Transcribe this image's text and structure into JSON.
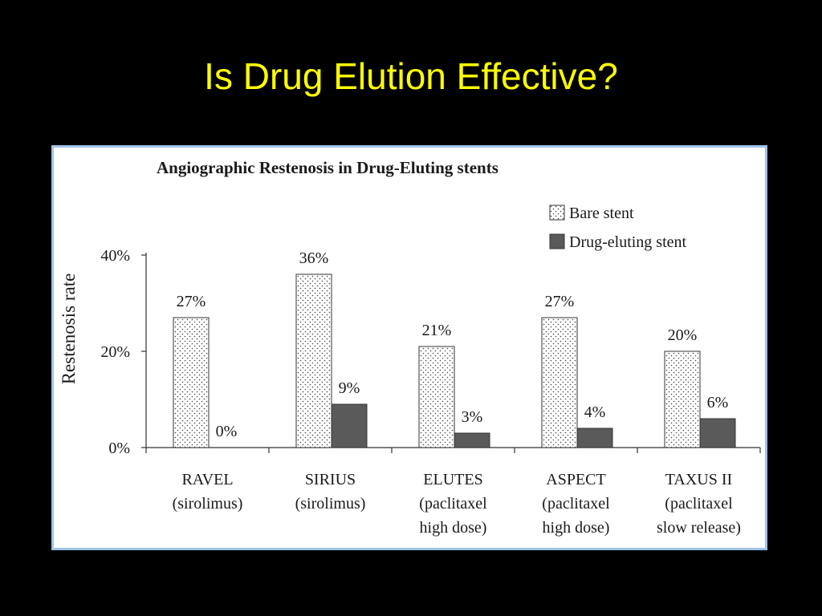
{
  "slide": {
    "title": "Is Drug Elution Effective?"
  },
  "colors": {
    "background": "#000000",
    "title": "#ffff00",
    "frame_border": "#9fc3e6",
    "bare_fill": "#ffffff",
    "drug_fill": "#5a5a5a"
  },
  "chart_data": {
    "type": "bar",
    "title": "Angiographic Restenosis in Drug-Eluting stents",
    "ylabel": "Restenosis rate",
    "xlabel": "",
    "ylim": [
      0,
      40
    ],
    "yticks": [
      "0%",
      "20%",
      "40%"
    ],
    "grid": false,
    "legend_position": "top-right",
    "categories": [
      [
        "RAVEL",
        "(sirolimus)"
      ],
      [
        "SIRIUS",
        "(sirolimus)"
      ],
      [
        "ELUTES",
        "(paclitaxel",
        "high dose)"
      ],
      [
        "ASPECT",
        "(paclitaxel",
        "high dose)"
      ],
      [
        "TAXUS II",
        "(paclitaxel",
        "slow release)"
      ]
    ],
    "series": [
      {
        "name": "Bare stent",
        "pattern": "dotted",
        "values": [
          27,
          36,
          21,
          27,
          20
        ],
        "labels": [
          "27%",
          "36%",
          "21%",
          "27%",
          "20%"
        ]
      },
      {
        "name": "Drug-eluting stent",
        "pattern": "solid-gray",
        "values": [
          0,
          9,
          3,
          4,
          6
        ],
        "labels": [
          "0%",
          "9%",
          "3%",
          "4%",
          "6%"
        ]
      }
    ]
  }
}
